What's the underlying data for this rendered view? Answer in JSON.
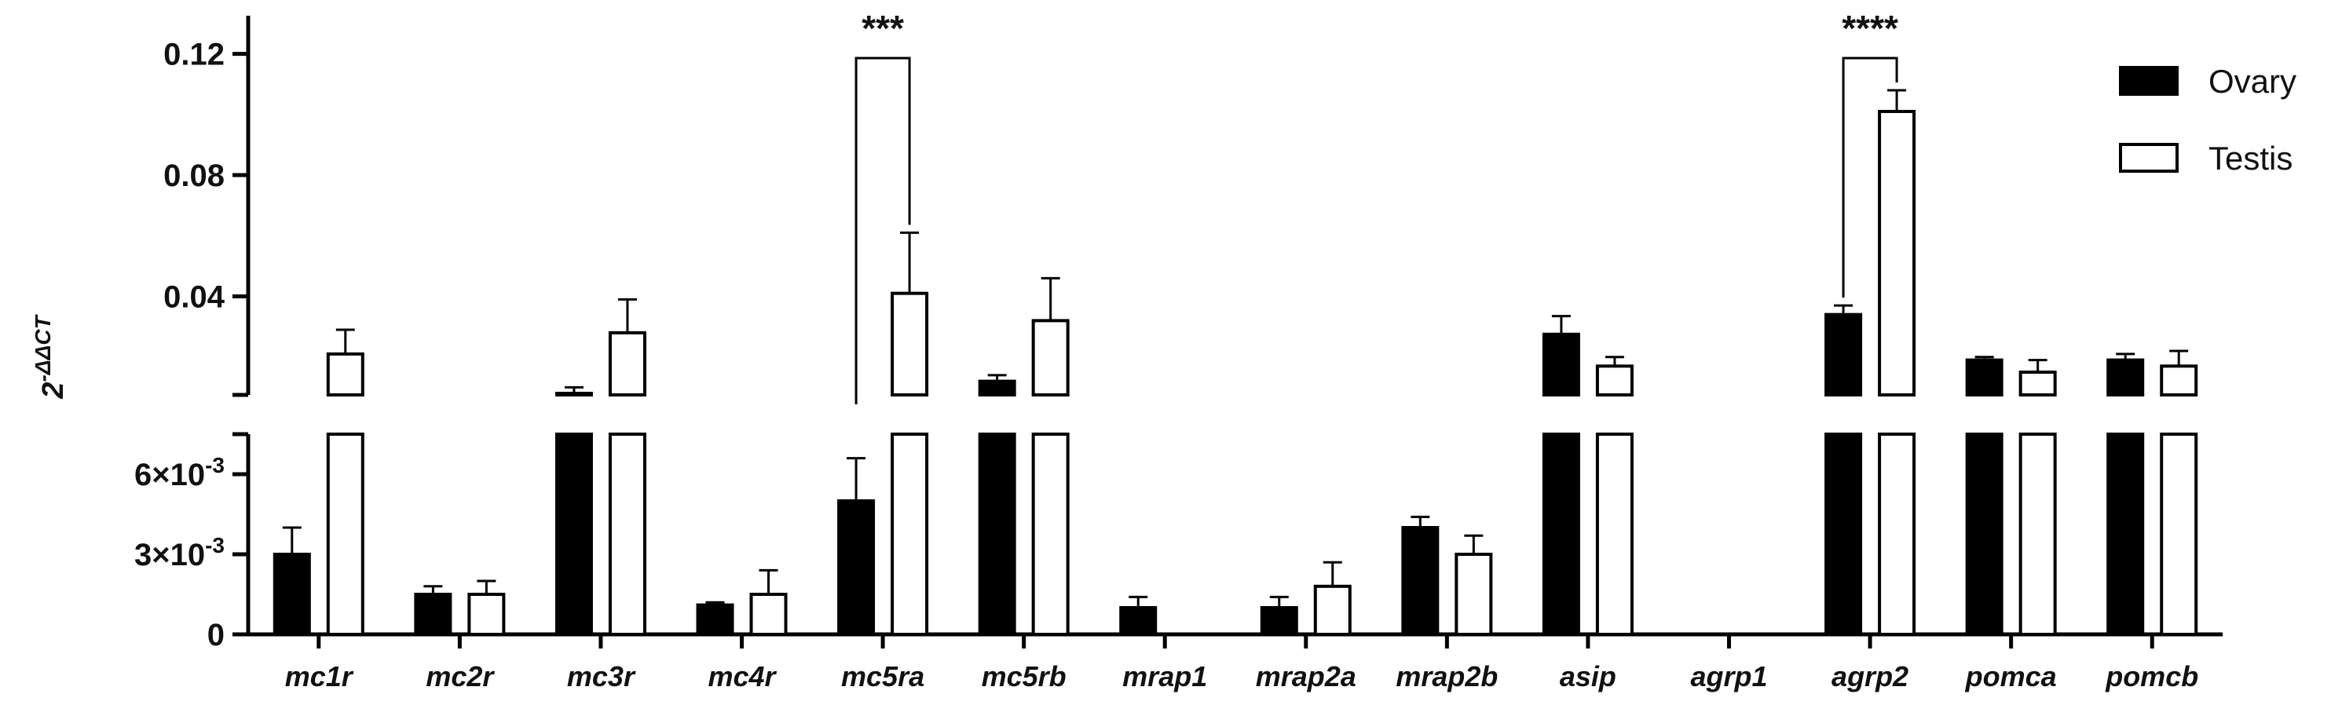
{
  "chart_data": {
    "type": "bar",
    "ylabel": "2-ΔΔCT",
    "ylabel_base": "2",
    "ylabel_sup": "-ΔΔCT",
    "axis_break": true,
    "lower_ylim": [
      0,
      0.0075
    ],
    "upper_ylim": [
      0.0075,
      0.13
    ],
    "lower_ticks": [
      0,
      0.003,
      0.006
    ],
    "lower_tick_labels": [
      "0",
      "3×10-3",
      "6×10-3"
    ],
    "upper_ticks": [
      0.04,
      0.08,
      0.12
    ],
    "upper_tick_labels": [
      "0.04",
      "0.08",
      "0.12"
    ],
    "categories": [
      "mc1r",
      "mc2r",
      "mc3r",
      "mc4r",
      "mc5ra",
      "mc5rb",
      "mrap1",
      "mrap2a",
      "mrap2b",
      "asip",
      "agrp1",
      "agrp2",
      "pomca",
      "pomcb"
    ],
    "series": [
      {
        "name": "Ovary",
        "color": "#000000",
        "values": [
          0.003,
          0.0015,
          0.008,
          0.0011,
          0.005,
          0.012,
          0.001,
          0.001,
          0.004,
          0.0275,
          0,
          0.034,
          0.019,
          0.019
        ],
        "errors": [
          0.001,
          0.0003,
          0.002,
          0.0001,
          0.0016,
          0.002,
          0.0004,
          0.0004,
          0.0004,
          0.006,
          0,
          0.003,
          0.001,
          0.002
        ]
      },
      {
        "name": "Testis",
        "color": "#ffffff",
        "values": [
          0.021,
          0.0015,
          0.028,
          0.0015,
          0.041,
          0.032,
          0,
          0.0018,
          0.003,
          0.017,
          0,
          0.101,
          0.015,
          0.017
        ],
        "errors": [
          0.008,
          0.0005,
          0.011,
          0.0009,
          0.02,
          0.014,
          0,
          0.0009,
          0.0007,
          0.003,
          0,
          0.007,
          0.004,
          0.005
        ]
      }
    ],
    "significance": [
      {
        "category": "mc5ra",
        "label": "***"
      },
      {
        "category": "agrp2",
        "label": "****"
      }
    ],
    "legend_position": "top-right",
    "grid": false
  }
}
